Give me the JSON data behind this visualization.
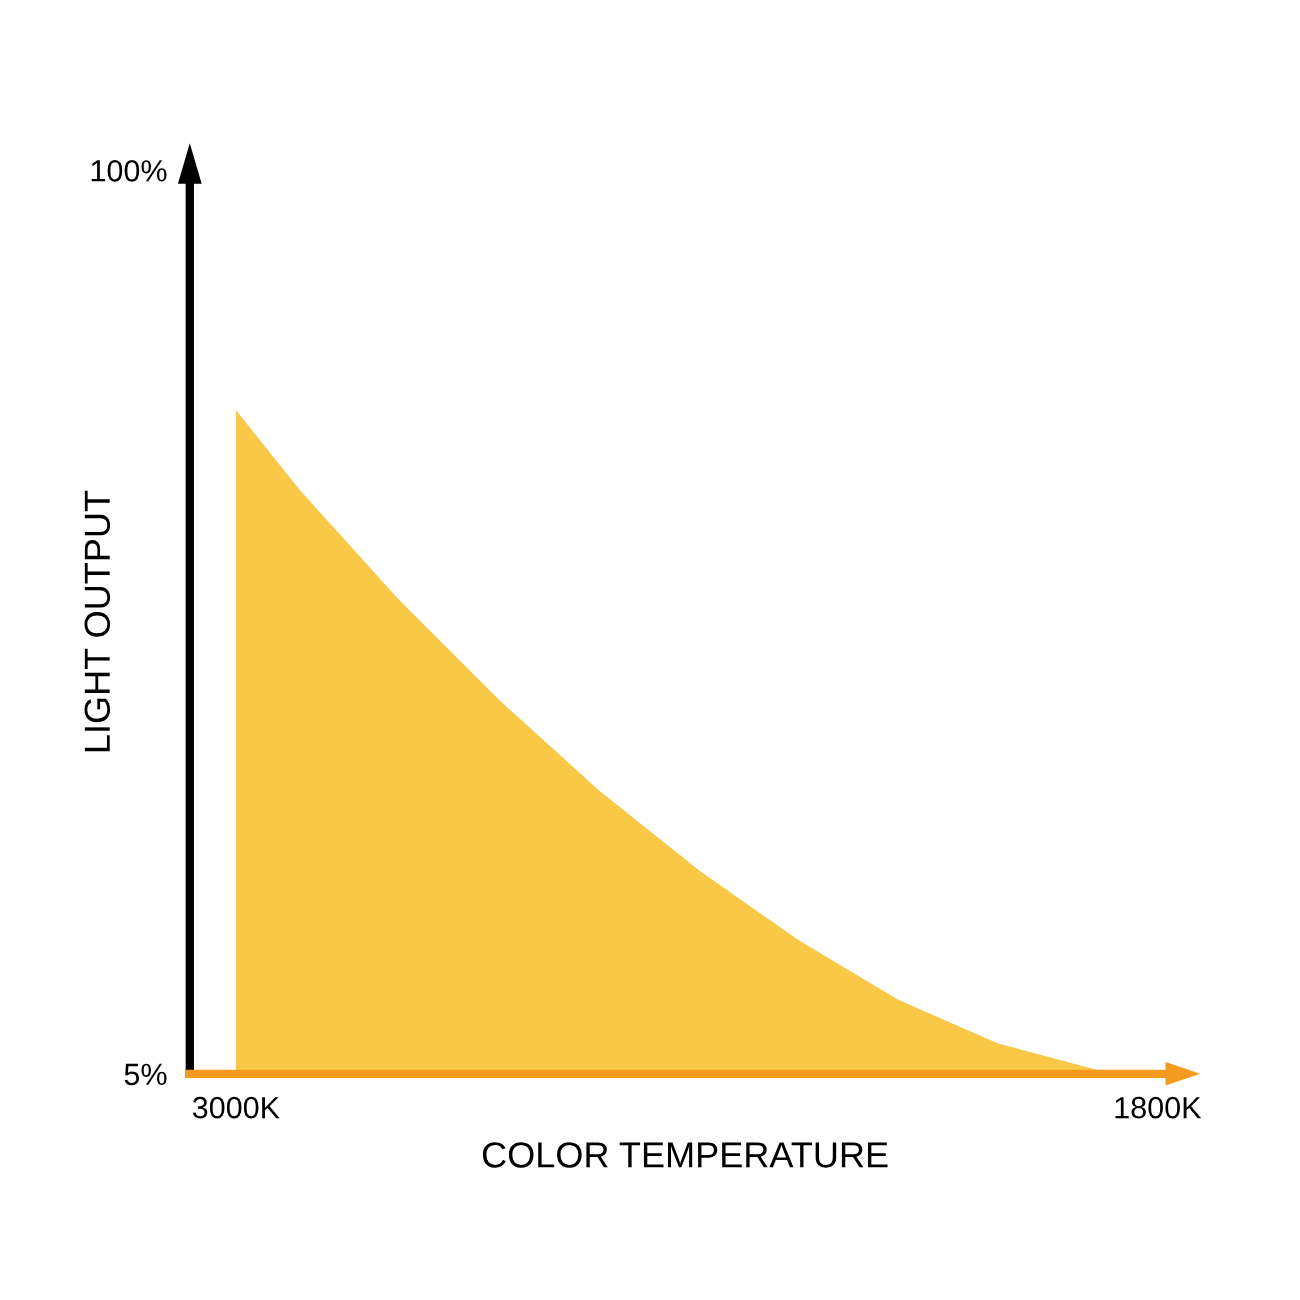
{
  "chart_data": {
    "type": "area",
    "xlabel": "COLOR TEMPERATURE",
    "ylabel": "LIGHT OUTPUT",
    "x": [
      3000,
      2917,
      2787,
      2657,
      2527,
      2397,
      2268,
      2138,
      2008,
      1878
    ],
    "series": [
      {
        "color": "#f9c846",
        "values": [
          74.8,
          66.4,
          54.8,
          44.3,
          34.8,
          26.4,
          19.1,
          12.8,
          8.2,
          5.4
        ]
      }
    ],
    "xlim": [
      3060,
      1770
    ],
    "xticks": [
      {
        "value": 3000,
        "label": "3000K"
      },
      {
        "value": 1800,
        "label": "1800K"
      }
    ],
    "ylim": [
      5,
      100
    ],
    "yticks": [
      {
        "value": 5,
        "label": "5%"
      },
      {
        "value": 100,
        "label": "100%"
      }
    ],
    "grid": false
  }
}
